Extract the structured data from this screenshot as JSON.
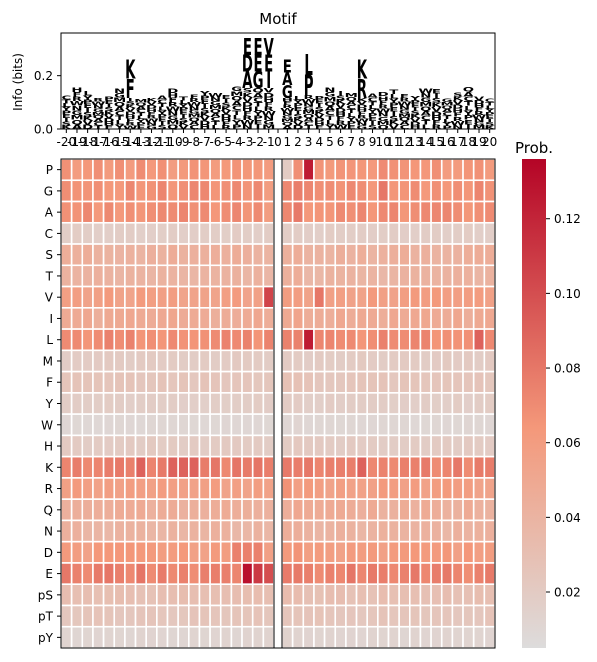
{
  "logo": {
    "title": "Motif",
    "ylabel": "Info (bits)",
    "yticks": [
      "0.0",
      "0.2"
    ],
    "xticks": [
      "-20",
      "-19",
      "-18",
      "-17",
      "-16",
      "-15",
      "-14",
      "-13",
      "-12",
      "-11",
      "-10",
      "-9",
      "-8",
      "-7",
      "-6",
      "-5",
      "-4",
      "-3",
      "-2",
      "-1",
      "0",
      "1",
      "2",
      "3",
      "4",
      "5",
      "6",
      "7",
      "8",
      "9",
      "10",
      "11",
      "12",
      "13",
      "14",
      "15",
      "16",
      "17",
      "18",
      "19",
      "20"
    ]
  },
  "colorbar": {
    "title": "Prob.",
    "ticks": [
      "0.02",
      "0.04",
      "0.06",
      "0.08",
      "0.10",
      "0.12"
    ]
  },
  "colors": {
    "cmap_low": "#dddcdc",
    "cmap_mid": "#f4987a",
    "cmap_high": "#b40426",
    "acidic": "#d62728",
    "basic": "#1f3fd8",
    "polar": "#e89b00",
    "hydrophobic": "#1a9a1a",
    "proline": "#000000",
    "phospho": "#9b5cc8"
  },
  "chart_data": {
    "type": "heatmap",
    "title": "",
    "xlabel": "",
    "ylabel": "",
    "positions": [
      "-20",
      "-19",
      "-18",
      "-17",
      "-16",
      "-15",
      "-14",
      "-13",
      "-12",
      "-11",
      "-10",
      "-9",
      "-8",
      "-7",
      "-6",
      "-5",
      "-4",
      "-3",
      "-2",
      "-1",
      "0",
      "1",
      "2",
      "3",
      "4",
      "5",
      "6",
      "7",
      "8",
      "9",
      "10",
      "11",
      "12",
      "13",
      "14",
      "15",
      "16",
      "17",
      "18",
      "19",
      "20"
    ],
    "residues": [
      "P",
      "G",
      "A",
      "C",
      "S",
      "T",
      "V",
      "I",
      "L",
      "M",
      "F",
      "Y",
      "W",
      "H",
      "K",
      "R",
      "Q",
      "N",
      "D",
      "E",
      "pS",
      "pT",
      "pY"
    ],
    "center_position": "0",
    "colorbar_label": "Prob.",
    "colorbar_range": [
      0.005,
      0.136
    ],
    "base_probs": [
      0.065,
      0.068,
      0.068,
      0.018,
      0.043,
      0.04,
      0.058,
      0.048,
      0.07,
      0.02,
      0.025,
      0.018,
      0.01,
      0.02,
      0.075,
      0.058,
      0.045,
      0.04,
      0.06,
      0.075,
      0.03,
      0.025,
      0.012
    ],
    "special_cells": [
      {
        "residue": "P",
        "position": "1",
        "prob": 0.02
      },
      {
        "residue": "P",
        "position": "3",
        "prob": 0.125
      },
      {
        "residue": "L",
        "position": "3",
        "prob": 0.125
      },
      {
        "residue": "V",
        "position": "-1",
        "prob": 0.105
      },
      {
        "residue": "V",
        "position": "4",
        "prob": 0.08
      },
      {
        "residue": "E",
        "position": "-3",
        "prob": 0.13
      },
      {
        "residue": "E",
        "position": "-2",
        "prob": 0.11
      },
      {
        "residue": "E",
        "position": "-1",
        "prob": 0.1
      },
      {
        "residue": "D",
        "position": "-4",
        "prob": 0.075
      },
      {
        "residue": "D",
        "position": "-3",
        "prob": 0.075
      },
      {
        "residue": "D",
        "position": "-2",
        "prob": 0.075
      },
      {
        "residue": "K",
        "position": "-13",
        "prob": 0.09
      },
      {
        "residue": "K",
        "position": "-10",
        "prob": 0.09
      },
      {
        "residue": "K",
        "position": "-9",
        "prob": 0.09
      },
      {
        "residue": "K",
        "position": "-8",
        "prob": 0.09
      },
      {
        "residue": "K",
        "position": "8",
        "prob": 0.09
      },
      {
        "residue": "G",
        "position": "10",
        "prob": 0.08
      },
      {
        "residue": "G",
        "position": "-1",
        "prob": 0.06
      },
      {
        "residue": "L",
        "position": "19",
        "prob": 0.09
      },
      {
        "residue": "A",
        "position": "-1",
        "prob": 0.06
      }
    ],
    "logo_top_letters": [
      {
        "position": "-3",
        "letters": [
          "E",
          "D",
          "A"
        ]
      },
      {
        "position": "-2",
        "letters": [
          "E",
          "E",
          "G"
        ]
      },
      {
        "position": "-1",
        "letters": [
          "V",
          "E",
          "I"
        ]
      },
      {
        "position": "1",
        "letters": [
          "E",
          "A",
          "G"
        ]
      },
      {
        "position": "3",
        "letters": [
          "L",
          "P"
        ]
      },
      {
        "position": "8",
        "letters": [
          "K",
          "R"
        ]
      },
      {
        "position": "-14",
        "letters": [
          "K",
          "F"
        ]
      }
    ],
    "logo_ylim": [
      0,
      0.36
    ]
  }
}
